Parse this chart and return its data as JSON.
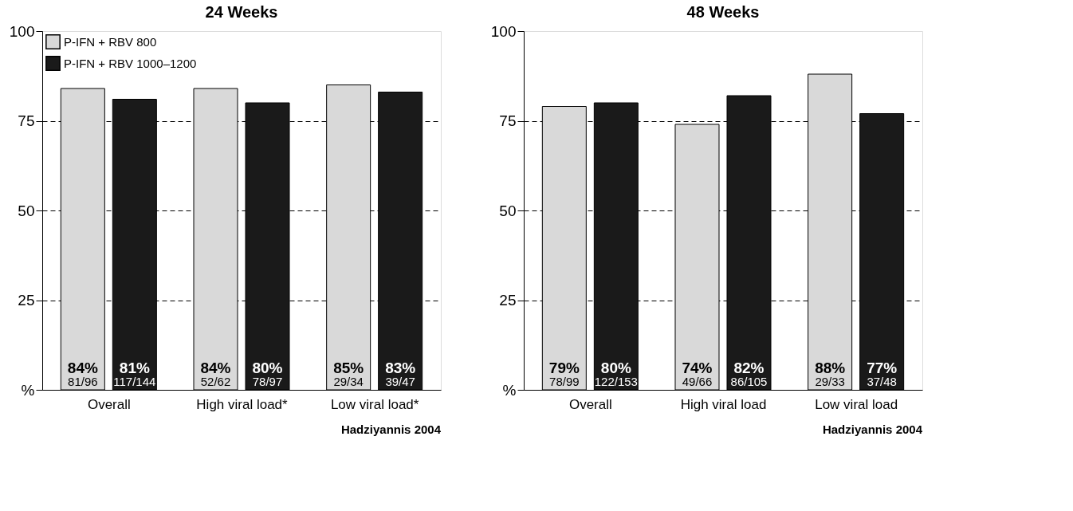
{
  "chart_data": [
    {
      "type": "bar",
      "title": "24 Weeks",
      "categories": [
        "Overall",
        "High viral load*",
        "Low viral load*"
      ],
      "series": [
        {
          "name": "P-IFN + RBV 800",
          "color": "#d9d9d9",
          "values": [
            84,
            84,
            85
          ],
          "value_labels": [
            "84%",
            "84%",
            "85%"
          ]
        },
        {
          "name": "P-IFN + RBV 1000–1200",
          "color": "#1a1a1a",
          "values": [
            81,
            80,
            83
          ],
          "value_labels": [
            "81%",
            "80%",
            "83%"
          ]
        }
      ],
      "ylim": [
        0,
        100
      ],
      "yticks": [
        {
          "value": 0,
          "label": "%"
        },
        25,
        50,
        75,
        100
      ],
      "grid": "y",
      "line_style": "dashed",
      "legend": "top left",
      "annotations": [
        "81/96",
        "117/144",
        "52/62",
        "78/97",
        "29/34",
        "39/47",
        "Hadziyannis 2004"
      ]
    },
    {
      "type": "bar",
      "title": "48 Weeks",
      "categories": [
        "Overall",
        "High viral load",
        "Low viral load"
      ],
      "series": [
        {
          "color": "#d9d9d9",
          "values": [
            79,
            74,
            88
          ],
          "value_labels": [
            "79%",
            "74%",
            "88%"
          ]
        },
        {
          "color": "#1a1a1a",
          "values": [
            80,
            82,
            77
          ],
          "value_labels": [
            "80%",
            "82%",
            "77%"
          ]
        }
      ],
      "ylim": [
        0,
        100
      ],
      "yticks": [
        {
          "value": 0,
          "label": "%"
        },
        25,
        50,
        75,
        100
      ],
      "grid": "y",
      "line_style": "dashed",
      "legend": false,
      "annotations": [
        "78/99",
        "122/153",
        "49/66",
        "86/105",
        "29/33",
        "37/48",
        "Hadziyannis 2004"
      ]
    }
  ]
}
